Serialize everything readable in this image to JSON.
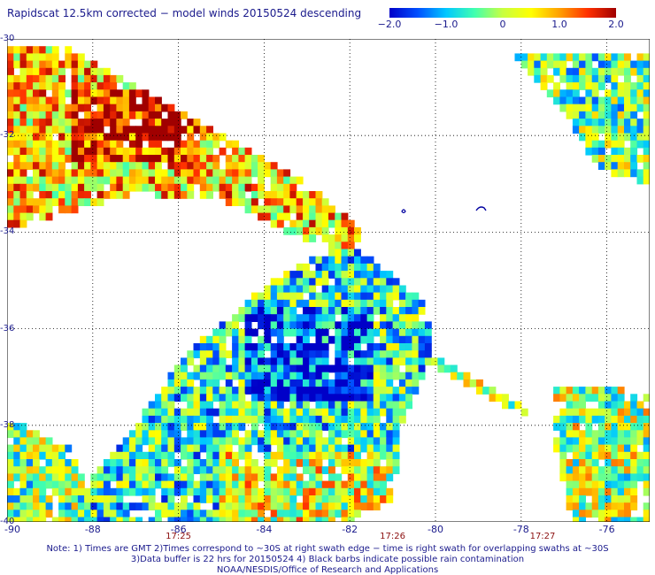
{
  "title": "Rapidscat 12.5km corrected − model winds 20150524 descending",
  "colorbar": {
    "labels": [
      "−2.0",
      "−1.0",
      "0",
      "1.0",
      "2.0"
    ],
    "values": [
      -2.0,
      -1.0,
      0,
      1.0,
      2.0
    ],
    "colors": [
      "#0000c8",
      "#0050ff",
      "#00c8ff",
      "#40ffb0",
      "#c8ff40",
      "#ffff00",
      "#ffa000",
      "#ff3000",
      "#a00000"
    ]
  },
  "map": {
    "lon_range": [
      -90,
      -75
    ],
    "lat_range": [
      -40,
      -30
    ],
    "lon_ticks": [
      "-90",
      "-88",
      "-86",
      "-84",
      "-82",
      "-80",
      "-78",
      "-76"
    ],
    "lat_ticks": [
      "-30",
      "-32",
      "-34",
      "-36",
      "-38",
      "-40"
    ],
    "time_labels": [
      {
        "text": "17:25",
        "lon": -86
      },
      {
        "text": "17:26",
        "lon": -81
      },
      {
        "text": "17:27",
        "lon": -77.5
      }
    ],
    "grid_color": "#000000",
    "swath_regions": [
      {
        "name": "upper-left swath",
        "poly": [
          [
            -90,
            -30.2
          ],
          [
            -88.5,
            -30.2
          ],
          [
            -86.5,
            -31.2
          ],
          [
            -84.5,
            -32.2
          ],
          [
            -83.0,
            -33.0
          ],
          [
            -81.7,
            -34.0
          ],
          [
            -82.0,
            -34.4
          ],
          [
            -83.5,
            -34.0
          ],
          [
            -85.0,
            -33.3
          ],
          [
            -87.0,
            -33.2
          ],
          [
            -89.0,
            -33.7
          ],
          [
            -90,
            -33.9
          ]
        ],
        "bias": 0.7
      },
      {
        "name": "central swath",
        "poly": [
          [
            -82.0,
            -34.2
          ],
          [
            -80.2,
            -35.5
          ],
          [
            -80.1,
            -36.6
          ],
          [
            -80.8,
            -38.0
          ],
          [
            -81.0,
            -39.5
          ],
          [
            -82.0,
            -40
          ],
          [
            -88.5,
            -40
          ],
          [
            -88.0,
            -39.0
          ],
          [
            -87.0,
            -38.0
          ],
          [
            -85.8,
            -36.5
          ],
          [
            -84.5,
            -35.5
          ],
          [
            -83.5,
            -34.8
          ]
        ],
        "bias": -0.6
      },
      {
        "name": "left edge swath",
        "poly": [
          [
            -90,
            -37.8
          ],
          [
            -88.5,
            -38.5
          ],
          [
            -88.0,
            -39.5
          ],
          [
            -88.3,
            -40
          ],
          [
            -90,
            -40
          ]
        ],
        "bias": -0.2
      },
      {
        "name": "upper-right swath",
        "poly": [
          [
            -78.2,
            -30.3
          ],
          [
            -75,
            -30.3
          ],
          [
            -75,
            -33.0
          ],
          [
            -76.2,
            -32.7
          ],
          [
            -77.0,
            -31.5
          ]
        ],
        "bias": -0.3
      },
      {
        "name": "lower-right swath",
        "poly": [
          [
            -77.3,
            -37.2
          ],
          [
            -76.0,
            -37.2
          ],
          [
            -75,
            -37.4
          ],
          [
            -75,
            -40
          ],
          [
            -76.8,
            -40
          ],
          [
            -77.2,
            -38.5
          ]
        ],
        "bias": 0.0
      },
      {
        "name": "diagonal trail",
        "poly": [
          [
            -80.3,
            -36.4
          ],
          [
            -78.0,
            -37.6
          ],
          [
            -77.7,
            -37.9
          ],
          [
            -80.0,
            -36.8
          ]
        ],
        "bias": -0.1
      }
    ]
  },
  "notes": [
    "Note: 1) Times are GMT 2)Times correspond to ~30S at right swath edge − time is right swath for overlapping swaths at ~30S",
    "3)Data buffer is 22 hrs for 20150524 4) Black barbs indicate possible rain contamination",
    "NOAA/NESDIS/Office of Research and Applications"
  ]
}
